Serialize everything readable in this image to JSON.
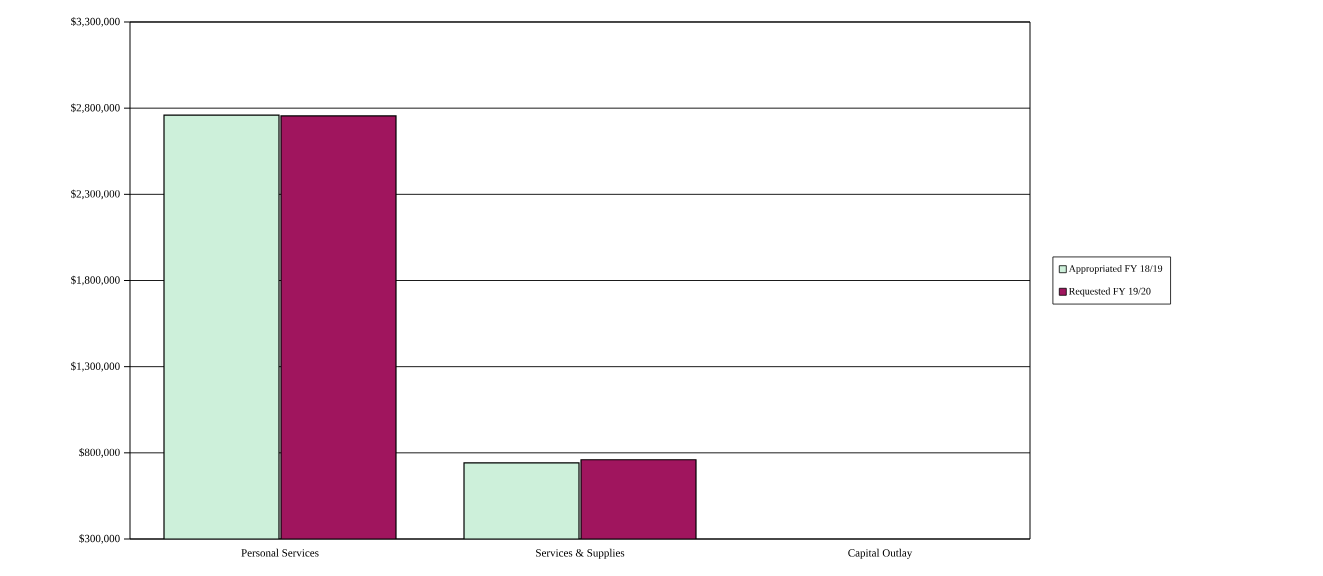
{
  "chart_data": {
    "type": "bar",
    "categories": [
      "Personal Services",
      "Services & Supplies",
      "Capital Outlay"
    ],
    "series": [
      {
        "name": "Appropriated FY 18/19",
        "color": "#cdf0da",
        "values": [
          2760000,
          742000,
          null
        ]
      },
      {
        "name": "Requested FY 19/20",
        "color": "#a0155e",
        "values": [
          2755000,
          760000,
          null
        ]
      }
    ],
    "ylim": [
      300000,
      3300000
    ],
    "yticks": [
      {
        "value": 300000,
        "label": "$300,000"
      },
      {
        "value": 800000,
        "label": "$800,000"
      },
      {
        "value": 1300000,
        "label": "$1,300,000"
      },
      {
        "value": 1800000,
        "label": "$1,800,000"
      },
      {
        "value": 2300000,
        "label": "$2,300,000"
      },
      {
        "value": 2800000,
        "label": "$2,800,000"
      },
      {
        "value": 3300000,
        "label": "$3,300,000"
      }
    ],
    "grid": "y",
    "legend": "right"
  }
}
